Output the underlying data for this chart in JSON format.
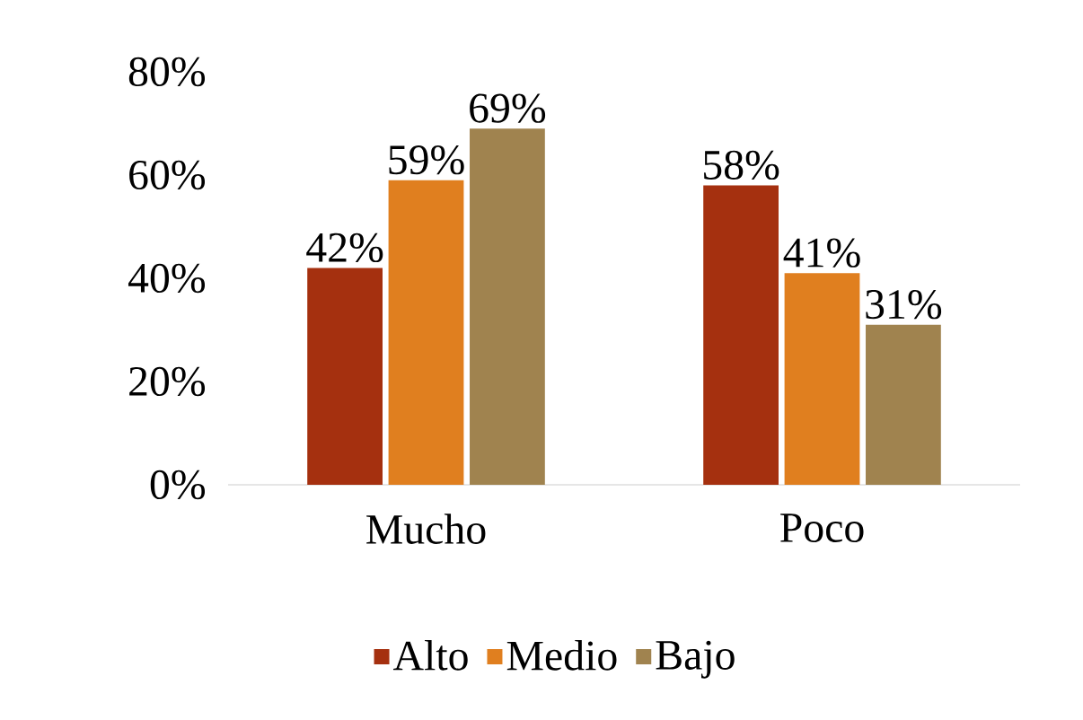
{
  "chart_data": {
    "type": "bar",
    "categories": [
      "Mucho",
      "Poco"
    ],
    "series": [
      {
        "name": "Alto",
        "color": "#a5300f",
        "values": [
          42,
          58
        ],
        "value_labels": [
          "42%",
          "58%"
        ]
      },
      {
        "name": "Medio",
        "color": "#e07f1f",
        "values": [
          59,
          41
        ],
        "value_labels": [
          "59%",
          "41%"
        ]
      },
      {
        "name": "Bajo",
        "color": "#a0834f",
        "values": [
          69,
          31
        ],
        "value_labels": [
          "69%",
          "31%"
        ]
      }
    ],
    "ylim": [
      0,
      80
    ],
    "yticks": [
      {
        "value": 0,
        "label": "0%"
      },
      {
        "value": 20,
        "label": "20%"
      },
      {
        "value": 40,
        "label": "40%"
      },
      {
        "value": 60,
        "label": "60%"
      },
      {
        "value": 80,
        "label": "80%"
      }
    ],
    "legend": "bottom"
  }
}
